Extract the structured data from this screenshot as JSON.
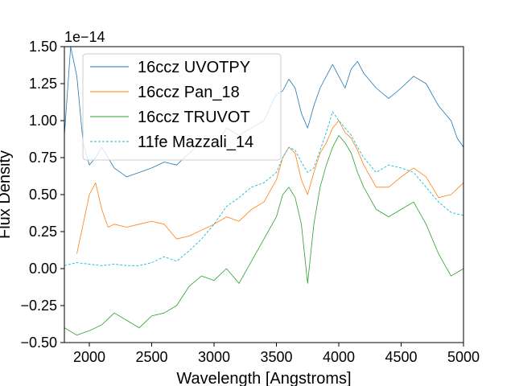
{
  "chart_data": {
    "type": "line",
    "xlabel": "Wavelength [Angstroms]",
    "ylabel": "Flux Density",
    "offset_label": "1e−14",
    "xlim": [
      1800,
      5000
    ],
    "ylim": [
      -0.5,
      1.5
    ],
    "x_ticks": [
      2000,
      2500,
      3000,
      3500,
      4000,
      4500,
      5000
    ],
    "y_ticks": [
      -0.5,
      -0.25,
      0.0,
      0.25,
      0.5,
      0.75,
      1.0,
      1.25,
      1.5
    ],
    "x_tick_labels": [
      "2000",
      "2500",
      "3000",
      "3500",
      "4000",
      "4500",
      "5000"
    ],
    "y_tick_labels": [
      "−0.50",
      "−0.25",
      "0.00",
      "0.25",
      "0.50",
      "0.75",
      "1.00",
      "1.25",
      "1.50"
    ],
    "grid": false,
    "legend_position": "top-left",
    "series": [
      {
        "name": "16ccz UVOTPY",
        "color": "#1f77b4",
        "style": "solid",
        "x": [
          1800,
          1850,
          1900,
          1950,
          2000,
          2050,
          2100,
          2200,
          2300,
          2400,
          2500,
          2600,
          2700,
          2800,
          2900,
          3000,
          3100,
          3200,
          3300,
          3400,
          3500,
          3550,
          3600,
          3650,
          3700,
          3750,
          3800,
          3850,
          3900,
          3950,
          4000,
          4050,
          4100,
          4150,
          4200,
          4300,
          4400,
          4500,
          4600,
          4700,
          4800,
          4900,
          4950,
          5000
        ],
        "y": [
          0.9,
          1.5,
          1.3,
          0.85,
          0.7,
          0.75,
          0.82,
          0.68,
          0.62,
          0.65,
          0.68,
          0.72,
          0.7,
          0.78,
          0.85,
          0.82,
          0.95,
          0.9,
          0.95,
          1.0,
          1.18,
          1.2,
          1.28,
          1.22,
          1.05,
          0.95,
          1.1,
          1.22,
          1.3,
          1.38,
          1.3,
          1.22,
          1.35,
          1.4,
          1.32,
          1.22,
          1.15,
          1.22,
          1.3,
          1.25,
          1.1,
          1.0,
          0.88,
          0.82
        ]
      },
      {
        "name": "16ccz Pan_18",
        "color": "#ff7f0e",
        "style": "solid",
        "x": [
          1900,
          1950,
          2000,
          2050,
          2100,
          2150,
          2200,
          2300,
          2400,
          2500,
          2600,
          2700,
          2800,
          2900,
          3000,
          3100,
          3200,
          3300,
          3400,
          3500,
          3550,
          3600,
          3650,
          3700,
          3750,
          3800,
          3850,
          3900,
          3950,
          4000,
          4050,
          4100,
          4150,
          4200,
          4300,
          4400,
          4500,
          4600,
          4700,
          4800,
          4900,
          5000
        ],
        "y": [
          0.1,
          0.3,
          0.5,
          0.58,
          0.4,
          0.28,
          0.3,
          0.28,
          0.3,
          0.32,
          0.3,
          0.2,
          0.22,
          0.26,
          0.3,
          0.35,
          0.32,
          0.4,
          0.45,
          0.6,
          0.75,
          0.82,
          0.78,
          0.6,
          0.5,
          0.65,
          0.78,
          0.85,
          0.95,
          1.0,
          0.92,
          0.88,
          0.8,
          0.7,
          0.55,
          0.55,
          0.62,
          0.68,
          0.62,
          0.48,
          0.5,
          0.58
        ]
      },
      {
        "name": "16ccz TRUVOT",
        "color": "#2ca02c",
        "style": "solid",
        "x": [
          1800,
          1900,
          2000,
          2100,
          2200,
          2300,
          2400,
          2500,
          2600,
          2700,
          2800,
          2900,
          3000,
          3100,
          3200,
          3300,
          3400,
          3500,
          3550,
          3600,
          3650,
          3700,
          3750,
          3800,
          3850,
          3900,
          3950,
          4000,
          4050,
          4100,
          4150,
          4200,
          4300,
          4400,
          4500,
          4600,
          4700,
          4800,
          4900,
          5000
        ],
        "y": [
          -0.4,
          -0.45,
          -0.42,
          -0.38,
          -0.3,
          -0.35,
          -0.4,
          -0.32,
          -0.3,
          -0.25,
          -0.12,
          -0.05,
          -0.08,
          0.0,
          -0.1,
          0.05,
          0.2,
          0.35,
          0.5,
          0.55,
          0.48,
          0.3,
          -0.1,
          0.3,
          0.55,
          0.7,
          0.82,
          0.9,
          0.85,
          0.78,
          0.65,
          0.55,
          0.4,
          0.35,
          0.4,
          0.45,
          0.3,
          0.1,
          -0.05,
          0.0
        ]
      },
      {
        "name": "11fe Mazzali_14",
        "color": "#17becf",
        "style": "dashed",
        "x": [
          1800,
          1900,
          2000,
          2100,
          2200,
          2300,
          2400,
          2500,
          2600,
          2700,
          2800,
          2900,
          3000,
          3100,
          3200,
          3300,
          3400,
          3500,
          3550,
          3600,
          3650,
          3700,
          3750,
          3800,
          3850,
          3900,
          3950,
          4000,
          4050,
          4100,
          4150,
          4200,
          4300,
          4400,
          4500,
          4600,
          4700,
          4800,
          4900,
          5000
        ],
        "y": [
          0.02,
          0.04,
          0.03,
          0.02,
          0.03,
          0.02,
          0.02,
          0.04,
          0.08,
          0.05,
          0.12,
          0.2,
          0.3,
          0.42,
          0.48,
          0.55,
          0.58,
          0.65,
          0.75,
          0.82,
          0.8,
          0.72,
          0.65,
          0.68,
          0.8,
          0.92,
          1.06,
          1.0,
          0.95,
          0.9,
          0.82,
          0.75,
          0.65,
          0.7,
          0.68,
          0.65,
          0.55,
          0.45,
          0.38,
          0.36
        ]
      }
    ]
  }
}
